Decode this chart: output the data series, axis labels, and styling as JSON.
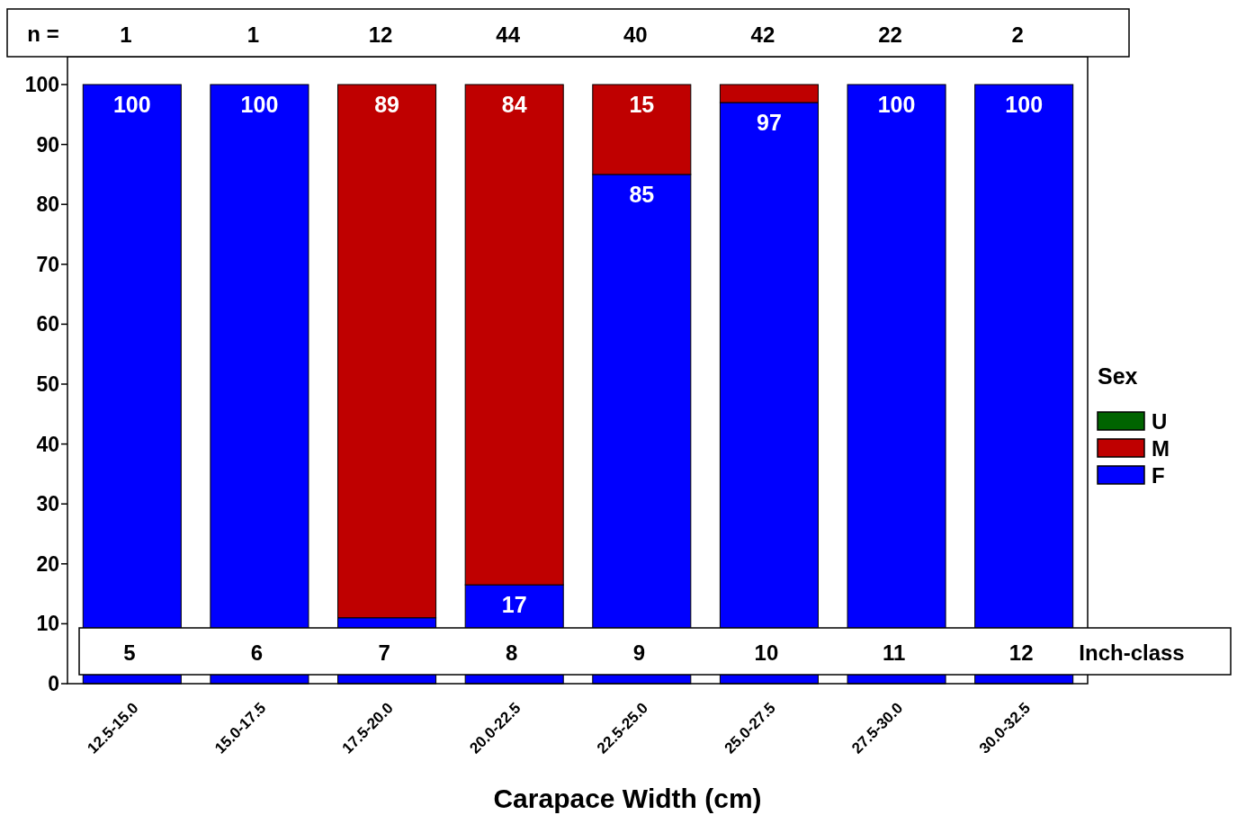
{
  "chart_data": {
    "type": "bar",
    "stacked": true,
    "xlabel": "Carapace Width (cm)",
    "legend_title": "Sex",
    "legend": "right",
    "categories": [
      "12.5-15.0",
      "15.0-17.5",
      "17.5-20.0",
      "20.0-22.5",
      "22.5-25.0",
      "25.0-27.5",
      "27.5-30.0",
      "30.0-32.5"
    ],
    "series": [
      {
        "name": "F",
        "color": "#0000ff",
        "values": [
          100,
          100,
          11,
          16.5,
          85,
          97,
          100,
          100
        ],
        "value_labels": [
          "100",
          "100",
          null,
          "17",
          "85",
          "97",
          "100",
          "100"
        ]
      },
      {
        "name": "M",
        "color": "#bf0000",
        "values": [
          0,
          0,
          89,
          83.5,
          15,
          3,
          0,
          0
        ],
        "value_labels": [
          null,
          null,
          "89",
          "84",
          "15",
          null,
          null,
          null
        ]
      },
      {
        "name": "U",
        "color": "#006400",
        "values": [
          0,
          0,
          0,
          0,
          0,
          0,
          0,
          0
        ],
        "value_labels": [
          null,
          null,
          null,
          null,
          null,
          null,
          null,
          null
        ]
      }
    ],
    "ylim": [
      0,
      100
    ],
    "yticks": [
      0,
      10,
      20,
      30,
      40,
      50,
      60,
      70,
      80,
      90,
      100
    ],
    "grid": false,
    "annotations": [
      "n =",
      "1",
      "1",
      "12",
      "44",
      "40",
      "42",
      "22",
      "2",
      "5",
      "6",
      "7",
      "8",
      "9",
      "10",
      "11",
      "12",
      "Inch-class"
    ]
  }
}
